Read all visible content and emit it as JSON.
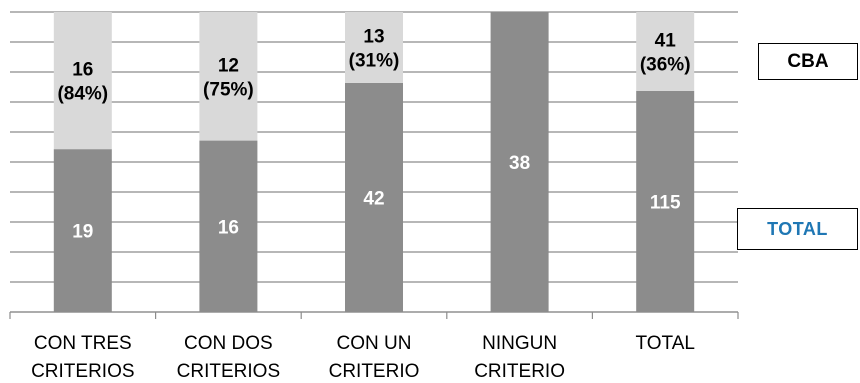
{
  "chart_data": {
    "type": "bar",
    "stacked": true,
    "categories": [
      [
        "CON TRES",
        "CRITERIOS"
      ],
      [
        "CON DOS",
        "CRITERIOS"
      ],
      [
        "CON UN",
        "CRITERIO"
      ],
      [
        "NINGUN",
        "CRITERIO"
      ],
      [
        "TOTAL"
      ]
    ],
    "series": [
      {
        "name": "TOTAL",
        "color": "#8c8c8c",
        "label_color": "#ffffff",
        "values": [
          19,
          16,
          42,
          38,
          115
        ],
        "labels": [
          "19",
          "16",
          "42",
          "38",
          "115"
        ]
      },
      {
        "name": "CBA",
        "color": "#d9d9d9",
        "label_color": "#000000",
        "values": [
          16,
          12,
          13,
          0,
          41
        ],
        "labels": [
          [
            "16",
            "(84%)"
          ],
          [
            "12",
            "(75%)"
          ],
          [
            "13",
            "(31%)"
          ],
          null,
          [
            "41",
            "(36%)"
          ]
        ]
      }
    ],
    "grid": true,
    "legend_position": "right",
    "legend": [
      "CBA",
      "TOTAL"
    ]
  }
}
